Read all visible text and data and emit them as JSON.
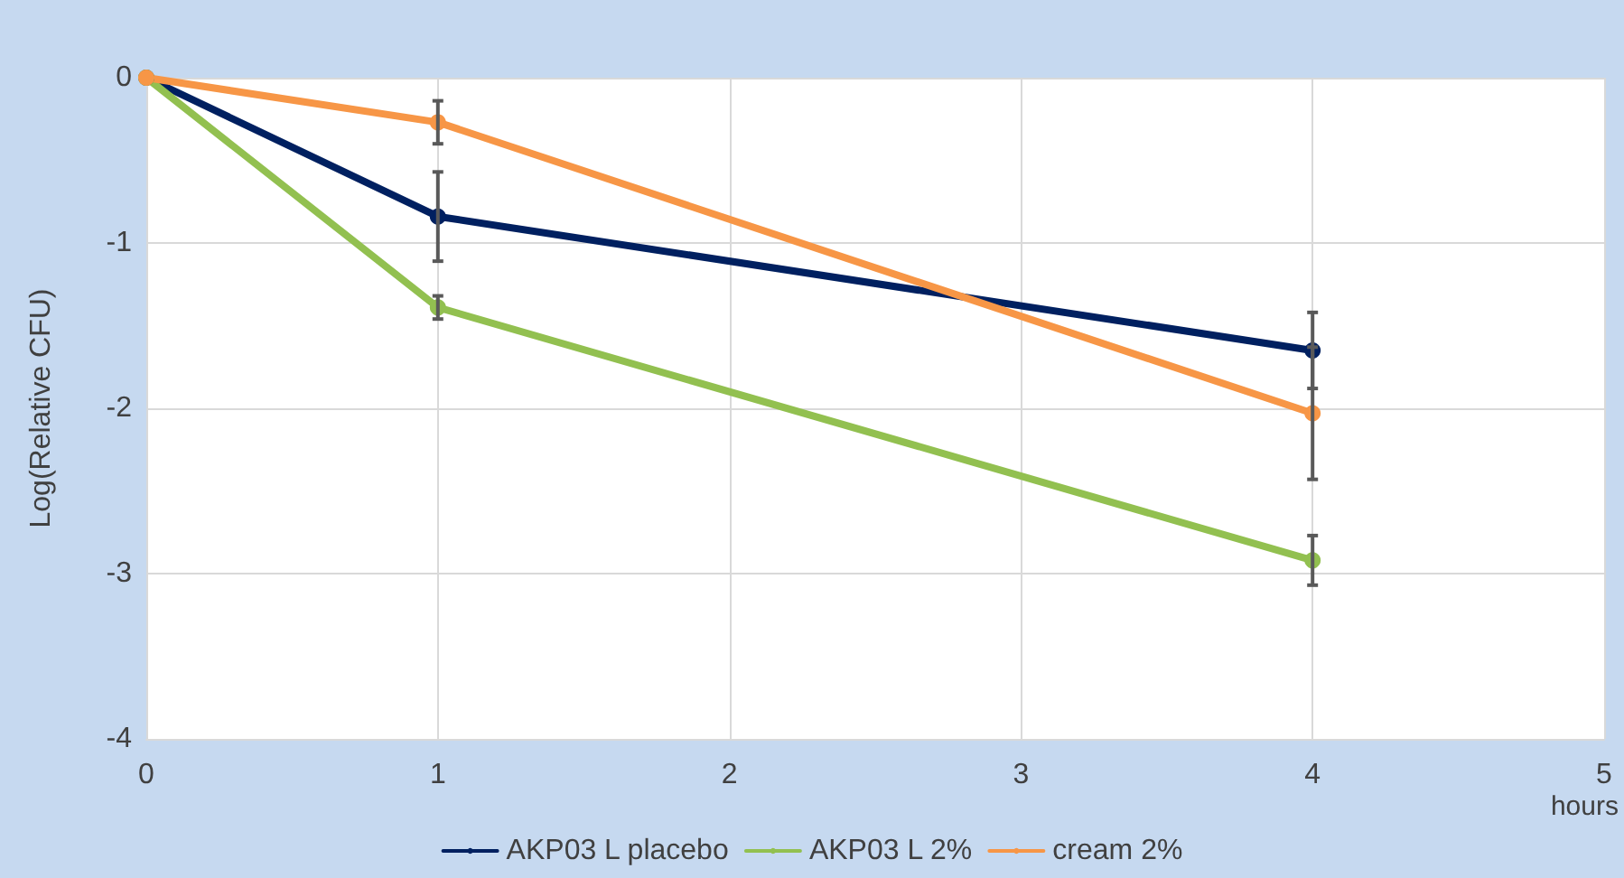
{
  "chart_data": {
    "type": "line",
    "ylabel": "Log(Relative CFU)",
    "xlabel": "hours",
    "x": [
      0,
      1,
      4
    ],
    "xlim": [
      0,
      5
    ],
    "xticks": [
      0,
      1,
      2,
      3,
      4,
      5
    ],
    "ylim": [
      -4,
      0
    ],
    "yticks": [
      -4,
      -3,
      -2,
      -1,
      0
    ],
    "grid": true,
    "legend": "bottom",
    "marker": "circle",
    "line_style": "solid",
    "series": [
      {
        "name": "AKP03 L placebo",
        "color": "#002060",
        "values": [
          0,
          -0.84,
          -1.65
        ],
        "errors": [
          null,
          0.27,
          0.23
        ]
      },
      {
        "name": "AKP03 L 2%",
        "color": "#92c050",
        "values": [
          0,
          -1.39,
          -2.92
        ],
        "errors": [
          null,
          0.07,
          0.15
        ]
      },
      {
        "name": "cream 2%",
        "color": "#f79646",
        "values": [
          0,
          -0.27,
          -2.03
        ],
        "errors": [
          null,
          0.13,
          0.4
        ]
      }
    ]
  }
}
